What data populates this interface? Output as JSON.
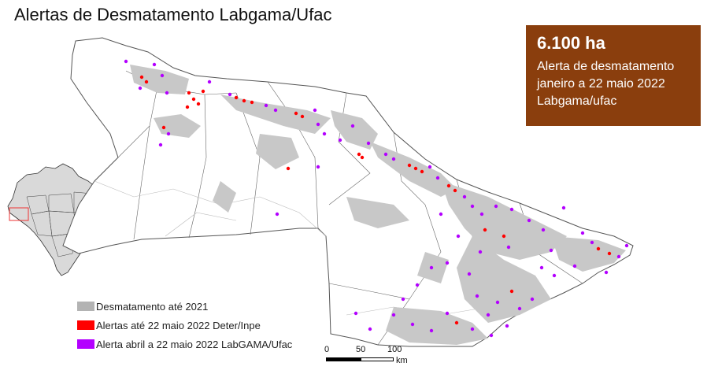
{
  "title": "Alertas de Desmatamento Labgama/Ufac",
  "info_box": {
    "area": "6.100 ha",
    "line1": "Alerta de desmatamento",
    "line2": "janeiro a 22 maio 2022",
    "line3": "Labgama/ufac",
    "color": "#8a3e0d"
  },
  "legend": [
    {
      "label": "Desmatamento até 2021",
      "color": "#b3b3b3"
    },
    {
      "label": "Alertas até 22 maio 2022 Deter/Inpe",
      "color": "#ff0000"
    },
    {
      "label": "Alerta abril a 22 maio 2022 LabGAMA/Ufac",
      "color": "#b300ff"
    }
  ],
  "scale": {
    "ticks": [
      "0",
      "50",
      "100"
    ],
    "unit": "km"
  },
  "colors": {
    "deforestation": "#c8c8c8",
    "deter_alert": "#ff0000",
    "labgama_alert": "#b300ff",
    "boundary": "#555555"
  }
}
